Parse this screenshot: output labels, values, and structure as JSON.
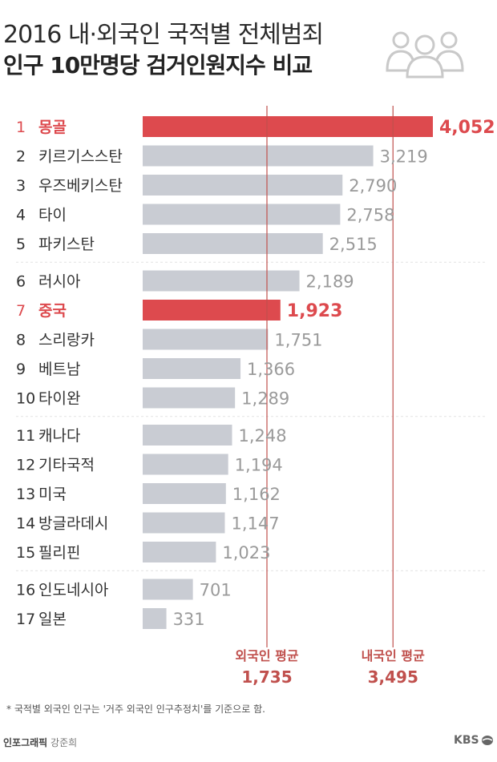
{
  "header": {
    "title_line1": "2016 내·외국인 국적별 전체범죄",
    "title_line2": "인구 10만명당 검거인원지수 비교"
  },
  "chart_data": {
    "type": "bar",
    "orientation": "horizontal",
    "title": "2016 내·외국인 국적별 전체범죄 인구 10만명당 검거인원지수 비교",
    "ranks": [
      "1",
      "2",
      "3",
      "4",
      "5",
      "6",
      "7",
      "8",
      "9",
      "10",
      "11",
      "12",
      "13",
      "14",
      "15",
      "16",
      "17"
    ],
    "categories": [
      "몽골",
      "키르기스스탄",
      "우즈베키스탄",
      "타이",
      "파키스탄",
      "러시아",
      "중국",
      "스리랑카",
      "베트남",
      "타이완",
      "캐나다",
      "기타국적",
      "미국",
      "방글라데시",
      "필리핀",
      "인도네시아",
      "일본"
    ],
    "values": [
      4052,
      3219,
      2790,
      2758,
      2515,
      2189,
      1923,
      1751,
      1366,
      1289,
      1248,
      1194,
      1162,
      1147,
      1023,
      701,
      331
    ],
    "value_labels": [
      "4,052",
      "3,219",
      "2,790",
      "2,758",
      "2,515",
      "2,189",
      "1,923",
      "1,751",
      "1,366",
      "1,289",
      "1,248",
      "1,194",
      "1,162",
      "1,147",
      "1,023",
      "701",
      "331"
    ],
    "highlighted": [
      "몽골",
      "중국"
    ],
    "groups": [
      [
        0,
        4
      ],
      [
        5,
        9
      ],
      [
        10,
        14
      ],
      [
        15,
        16
      ]
    ],
    "xlim": [
      0,
      4052
    ],
    "reference_lines": [
      {
        "name": "외국인 평균",
        "value": 1735,
        "label": "1,735"
      },
      {
        "name": "내국인 평균",
        "value": 3495,
        "label": "3,495"
      }
    ]
  },
  "footnote": "* 국적별 외국인 인구는 '거주 외국인 인구추정치'를 기준으로 함.",
  "credit": {
    "label": "인포그래픽",
    "name": "강준희"
  },
  "brand": "KBS",
  "colors": {
    "highlight": "#dd4a4e",
    "bar": "#c9ccd3",
    "line": "#c0504d",
    "text": "#333333",
    "value_text": "#9a9a9a",
    "separator": "#e2e2e2"
  },
  "icons": {
    "header": "people-group-icon",
    "brand": "kbs-logo-icon"
  }
}
